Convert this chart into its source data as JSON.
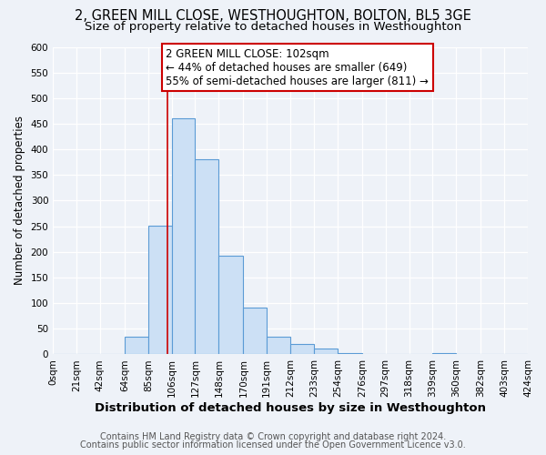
{
  "title": "2, GREEN MILL CLOSE, WESTHOUGHTON, BOLTON, BL5 3GE",
  "subtitle": "Size of property relative to detached houses in Westhoughton",
  "xlabel": "Distribution of detached houses by size in Westhoughton",
  "ylabel": "Number of detached properties",
  "bin_edges": [
    0,
    21,
    42,
    64,
    85,
    106,
    127,
    148,
    170,
    191,
    212,
    233,
    254,
    276,
    297,
    318,
    339,
    360,
    382,
    403,
    424
  ],
  "bin_heights": [
    0,
    0,
    0,
    35,
    252,
    460,
    381,
    192,
    92,
    35,
    20,
    12,
    2,
    0,
    0,
    0,
    2,
    0,
    0,
    0
  ],
  "bar_facecolor": "#cce0f5",
  "bar_edgecolor": "#5b9bd5",
  "vline_x": 102,
  "vline_color": "#cc0000",
  "annotation_line1": "2 GREEN MILL CLOSE: 102sqm",
  "annotation_line2": "← 44% of detached houses are smaller (649)",
  "annotation_line3": "55% of semi-detached houses are larger (811) →",
  "annotation_box_color": "#ffffff",
  "annotation_box_edgecolor": "#cc0000",
  "ylim": [
    0,
    600
  ],
  "yticks": [
    0,
    50,
    100,
    150,
    200,
    250,
    300,
    350,
    400,
    450,
    500,
    550,
    600
  ],
  "tick_labels": [
    "0sqm",
    "21sqm",
    "42sqm",
    "64sqm",
    "85sqm",
    "106sqm",
    "127sqm",
    "148sqm",
    "170sqm",
    "191sqm",
    "212sqm",
    "233sqm",
    "254sqm",
    "276sqm",
    "297sqm",
    "318sqm",
    "339sqm",
    "360sqm",
    "382sqm",
    "403sqm",
    "424sqm"
  ],
  "footnote1": "Contains HM Land Registry data © Crown copyright and database right 2024.",
  "footnote2": "Contains public sector information licensed under the Open Government Licence v3.0.",
  "background_color": "#eef2f8",
  "plot_background_color": "#eef2f8",
  "title_fontsize": 10.5,
  "subtitle_fontsize": 9.5,
  "xlabel_fontsize": 9.5,
  "ylabel_fontsize": 8.5,
  "tick_fontsize": 7.5,
  "footnote_fontsize": 7,
  "annotation_fontsize": 8.5
}
